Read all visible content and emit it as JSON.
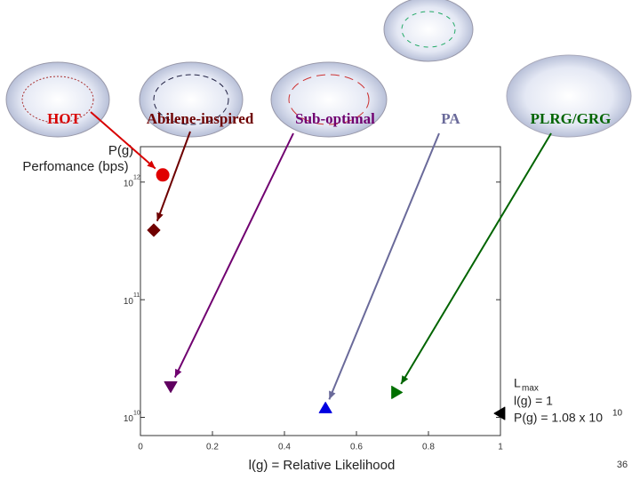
{
  "chart_data": {
    "type": "scatter",
    "ylabel_lines": [
      "P(g)",
      "Perfomance (bps)"
    ],
    "xlabel": "l(g) = Relative Likelihood",
    "xlim": [
      0,
      1
    ],
    "xticks": [
      0,
      0.2,
      0.4,
      0.6,
      0.8,
      1
    ],
    "ylim": [
      7000000000,
      2000000000000
    ],
    "yscale": "log",
    "yticks": [
      {
        "value": 10000000000,
        "label": "10",
        "exponent": "10"
      },
      {
        "value": 100000000000,
        "label": "10",
        "exponent": "11"
      },
      {
        "value": 1000000000000,
        "label": "10",
        "exponent": "12"
      }
    ],
    "series": [
      {
        "name": "HOT",
        "color": "#d80000",
        "marker": "circle",
        "x": [
          0.062
        ],
        "values": [
          1150000000000
        ]
      },
      {
        "name": "Abilene-inspired",
        "color": "#6e0000",
        "marker": "diamond",
        "x": [
          0.037
        ],
        "values": [
          390000000000
        ]
      },
      {
        "name": "Sub-optimal",
        "color": "#700070",
        "marker": "triangle-down",
        "x": [
          0.084
        ],
        "values": [
          18400000000
        ]
      },
      {
        "name": "PA",
        "color": "#6a6a9a",
        "marker": "triangle-up",
        "x": [
          0.514
        ],
        "values": [
          11900000000
        ]
      },
      {
        "name": "PLRG/GRG",
        "color": "#006400",
        "marker": "triangle-right",
        "x": [
          0.71
        ],
        "values": [
          16300000000
        ]
      }
    ],
    "series_marker_colors": [
      "#e00000",
      "#700000",
      "#600060",
      "#0000e0",
      "#007000"
    ],
    "optimum": {
      "color": "#000000",
      "x": [
        1
      ],
      "values": [
        10800000000
      ],
      "title": "L",
      "title_sub": "max",
      "line1": "l(g) = 1",
      "line2": "P(g) = 1.08 x 10",
      "line2_sup": "10"
    },
    "page_number": "36"
  }
}
